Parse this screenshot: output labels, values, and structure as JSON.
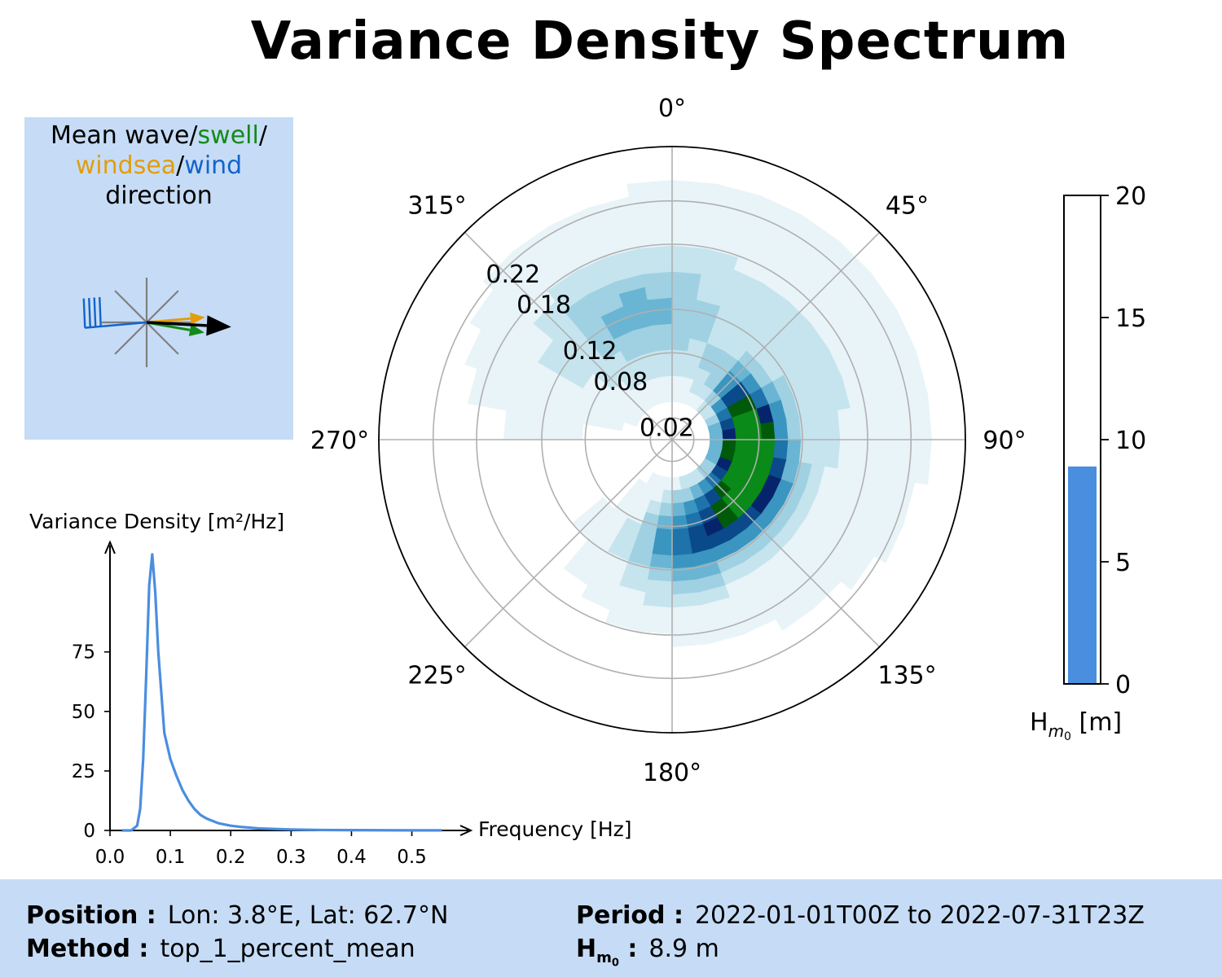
{
  "title": "Variance Density Spectrum",
  "direction_panel": {
    "caption": [
      [
        {
          "text": "Mean wave/",
          "color": "#000000"
        },
        {
          "text": "swell",
          "color": "#138a18"
        },
        {
          "text": "/",
          "color": "#000000"
        }
      ],
      [
        {
          "text": "windsea",
          "color": "#e29d0c"
        },
        {
          "text": "/",
          "color": "#000000"
        },
        {
          "text": "wind",
          "color": "#1463cc"
        }
      ],
      [
        {
          "text": "direction",
          "color": "#000000"
        }
      ]
    ],
    "icons": [
      "compass-rose-icon",
      "wind-barb-icon",
      "mean-wave-arrow-icon",
      "swell-arrow-icon",
      "windsea-arrow-icon"
    ],
    "directions_to_deg": {
      "mean_wave": 93,
      "swell": 100,
      "windsea": 85,
      "wind_from": 265
    }
  },
  "chart_data": [
    {
      "type": "heatmap",
      "subtype": "polar",
      "angle_labels": [
        "0°",
        "45°",
        "90°",
        "135°",
        "180°",
        "225°",
        "270°",
        "315°"
      ],
      "radial_ticks": [
        0.02,
        0.08,
        0.12,
        0.18,
        0.22
      ],
      "radial_tick_labels": [
        "0.02",
        "0.08",
        "0.12",
        "0.18",
        "0.22"
      ],
      "rmax": 0.27,
      "direction_convention": "clockwise from north",
      "colormap": [
        "#ffffff",
        "#e9f4f8",
        "#c6e4ee",
        "#9fd1e2",
        "#6ab5d3",
        "#3b95c1",
        "#1d73aa",
        "#0b4a8a",
        "#06246b",
        "#005a0a",
        "#0a8a18"
      ],
      "peaks": [
        {
          "dir": 90,
          "freq": 0.07,
          "dir_spread": 30,
          "freq_spread": 0.018,
          "amp": 10
        },
        {
          "dir": 130,
          "freq": 0.085,
          "dir_spread": 26,
          "freq_spread": 0.024,
          "amp": 6.5
        },
        {
          "dir": 175,
          "freq": 0.1,
          "dir_spread": 18,
          "freq_spread": 0.03,
          "amp": 4.2
        },
        {
          "dir": 340,
          "freq": 0.12,
          "dir_spread": 26,
          "freq_spread": 0.04,
          "amp": 2.8
        },
        {
          "dir": 60,
          "freq": 0.12,
          "dir_spread": 45,
          "freq_spread": 0.05,
          "amp": 1.5
        }
      ]
    },
    {
      "type": "line",
      "ylabel": "Variance Density [m²/Hz]",
      "xlabel": "Frequency [Hz]",
      "x_ticks": [
        0.0,
        0.1,
        0.2,
        0.3,
        0.4,
        0.5
      ],
      "x_tick_labels": [
        "0.0",
        "0.1",
        "0.2",
        "0.3",
        "0.4",
        "0.5"
      ],
      "y_ticks": [
        0,
        25,
        50,
        75
      ],
      "y_tick_labels": [
        "0",
        "25",
        "50",
        "75"
      ],
      "xlim": [
        0,
        0.56
      ],
      "ylim": [
        0,
        118
      ],
      "color": "#4a8edf",
      "x": [
        0.02,
        0.035,
        0.045,
        0.05,
        0.055,
        0.06,
        0.065,
        0.07,
        0.075,
        0.08,
        0.09,
        0.1,
        0.11,
        0.12,
        0.13,
        0.14,
        0.15,
        0.16,
        0.18,
        0.2,
        0.22,
        0.25,
        0.3,
        0.35,
        0.4,
        0.45,
        0.5,
        0.55
      ],
      "y": [
        0,
        0,
        2,
        9,
        30,
        65,
        103,
        116,
        100,
        75,
        41,
        30,
        23,
        17,
        12.5,
        9,
        6.5,
        5,
        3,
        2,
        1.4,
        0.8,
        0.4,
        0.2,
        0.12,
        0.08,
        0.05,
        0.03
      ]
    },
    {
      "type": "bar",
      "ylabel": "Hm0 [m]",
      "y_ticks": [
        0,
        5,
        10,
        15,
        20
      ],
      "y_tick_labels": [
        "0",
        "5",
        "10",
        "15",
        "20"
      ],
      "ylim": [
        0,
        20
      ],
      "value": 8.9,
      "color": "#4a8edf"
    }
  ],
  "hs_label": {
    "main": "H",
    "sub": "m",
    "subsub": "0",
    "unit": " [m]"
  },
  "footer": {
    "position_label": "Position :",
    "position_value": "Lon: 3.8°E, Lat: 62.7°N",
    "method_label": "Method :",
    "method_value": "top_1_percent_mean",
    "period_label": "Period :",
    "period_value": "2022-01-01T00Z to 2022-07-31T23Z",
    "hm0_label": {
      "main": "H",
      "sub": "m",
      "subsub": "0",
      "colon": " :"
    },
    "hm0_value": "8.9 m"
  }
}
